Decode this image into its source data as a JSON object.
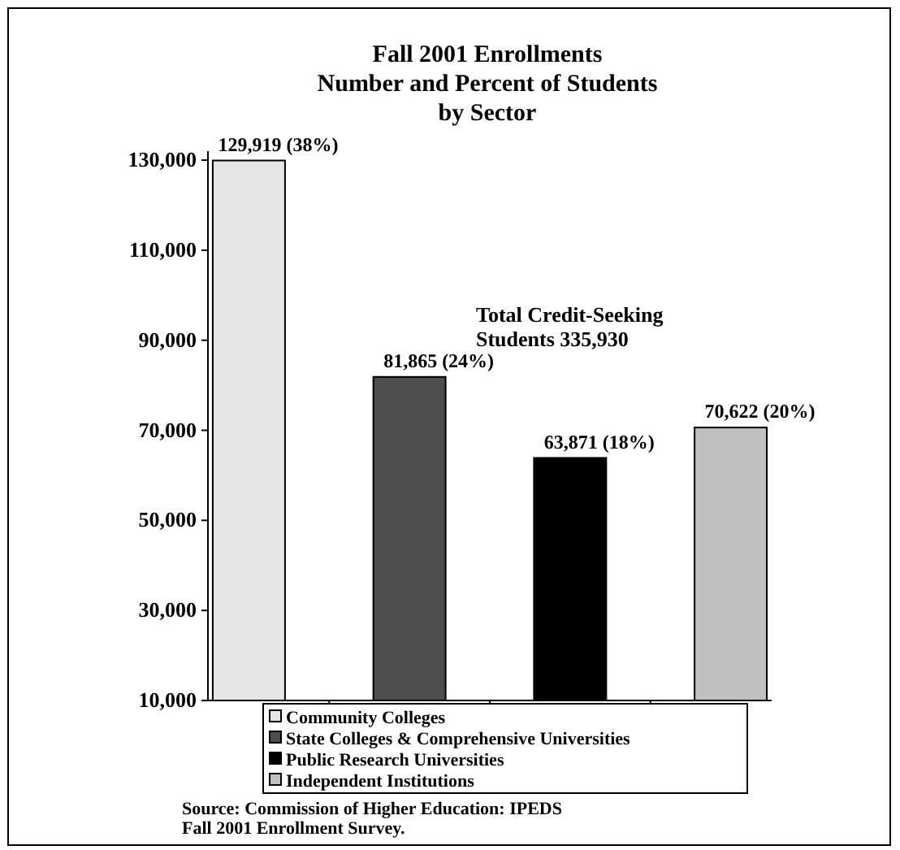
{
  "chart_data": {
    "type": "bar",
    "title": "Fall 2001 Enrollments\nNumber and Percent of Students\nby Sector",
    "categories": [
      null,
      null,
      null,
      null
    ],
    "series": [
      {
        "name": "Community Colleges",
        "color": "#e6e6e6",
        "values": [
          129919,
          null,
          null,
          null
        ],
        "value_labels": [
          "129,919 (38%)",
          null,
          null,
          null
        ]
      },
      {
        "name": "State Colleges & Comprehensive Universities",
        "color": "#4d4d4d",
        "values": [
          null,
          81865,
          null,
          null
        ],
        "value_labels": [
          null,
          "81,865 (24%)",
          null,
          null
        ]
      },
      {
        "name": "Public Research Universities",
        "color": "#000000",
        "values": [
          null,
          null,
          63871,
          null
        ],
        "value_labels": [
          null,
          null,
          "63,871 (18%)",
          null
        ]
      },
      {
        "name": "Independent Institutions",
        "color": "#c0c0c0",
        "values": [
          null,
          null,
          null,
          70622
        ],
        "value_labels": [
          null,
          null,
          null,
          "70,622 (20%)"
        ]
      }
    ],
    "ylim": [
      10000,
      132000
    ],
    "yticks": [
      {
        "value": 10000,
        "label": "10,000"
      },
      {
        "value": 30000,
        "label": "30,000"
      },
      {
        "value": 50000,
        "label": "50,000"
      },
      {
        "value": 70000,
        "label": "70,000"
      },
      {
        "value": 90000,
        "label": "90,000"
      },
      {
        "value": 110000,
        "label": "110,000"
      },
      {
        "value": 130000,
        "label": "130,000"
      }
    ],
    "grid": false,
    "legend": "bottom",
    "annotations": [
      "Total Credit-Seeking\nStudents 335,930",
      "Source:  Commission of Higher Education: IPEDS\nFall 2001 Enrollment Survey."
    ]
  }
}
